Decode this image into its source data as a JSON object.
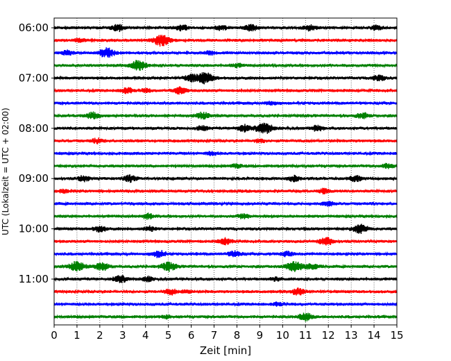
{
  "chart_data": {
    "type": "line",
    "title": "",
    "xlabel": "Zeit  [min]",
    "ylabel": "UTC (Lokalzeit = UTC + 02:00)",
    "xlim": [
      0,
      15
    ],
    "x_ticks": [
      "0",
      "1",
      "2",
      "3",
      "4",
      "5",
      "6",
      "7",
      "8",
      "9",
      "10",
      "11",
      "12",
      "13",
      "14",
      "15"
    ],
    "y_tick_labels": [
      "06:00",
      "07:00",
      "08:00",
      "09:00",
      "10:00",
      "11:00"
    ],
    "y_tick_rows": [
      0,
      4,
      8,
      12,
      16,
      20
    ],
    "row_interval_minutes": 15,
    "grid": "vertical dotted",
    "row_colors": [
      "#000000",
      "#ff0000",
      "#0000ff",
      "#008000"
    ],
    "rows": [
      {
        "start": "06:00",
        "color": "#000000",
        "events": [
          [
            2.8,
            0.6
          ],
          [
            5.6,
            0.5
          ],
          [
            7.3,
            0.4
          ],
          [
            8.6,
            0.6
          ],
          [
            11.2,
            0.5
          ],
          [
            14.1,
            0.4
          ]
        ]
      },
      {
        "start": "06:15",
        "color": "#ff0000",
        "events": [
          [
            4.7,
            1.0
          ],
          [
            1.1,
            0.3
          ]
        ]
      },
      {
        "start": "06:30",
        "color": "#0000ff",
        "events": [
          [
            2.3,
            0.9
          ],
          [
            0.6,
            0.4
          ],
          [
            6.8,
            0.3
          ]
        ]
      },
      {
        "start": "06:45",
        "color": "#008000",
        "events": [
          [
            3.7,
            0.9
          ],
          [
            8.0,
            0.3
          ]
        ]
      },
      {
        "start": "07:00",
        "color": "#000000",
        "events": [
          [
            6.6,
            1.0
          ],
          [
            6.0,
            0.6
          ],
          [
            14.2,
            0.5
          ]
        ]
      },
      {
        "start": "07:15",
        "color": "#ff0000",
        "events": [
          [
            5.5,
            0.6
          ],
          [
            3.2,
            0.5
          ],
          [
            4.0,
            0.3
          ]
        ]
      },
      {
        "start": "07:30",
        "color": "#0000ff",
        "events": [
          [
            9.5,
            0.3
          ]
        ]
      },
      {
        "start": "07:45",
        "color": "#008000",
        "events": [
          [
            1.7,
            0.6
          ],
          [
            6.5,
            0.6
          ],
          [
            13.5,
            0.5
          ]
        ]
      },
      {
        "start": "08:00",
        "color": "#000000",
        "events": [
          [
            9.2,
            1.0
          ],
          [
            8.3,
            0.6
          ],
          [
            11.5,
            0.5
          ],
          [
            6.5,
            0.4
          ]
        ]
      },
      {
        "start": "08:15",
        "color": "#ff0000",
        "events": [
          [
            1.9,
            0.4
          ],
          [
            9.0,
            0.3
          ]
        ]
      },
      {
        "start": "08:30",
        "color": "#0000ff",
        "events": [
          [
            6.9,
            0.3
          ]
        ]
      },
      {
        "start": "08:45",
        "color": "#008000",
        "events": [
          [
            14.6,
            0.4
          ],
          [
            8.0,
            0.3
          ]
        ]
      },
      {
        "start": "09:00",
        "color": "#000000",
        "events": [
          [
            1.3,
            0.5
          ],
          [
            3.3,
            0.6
          ],
          [
            10.5,
            0.5
          ],
          [
            13.2,
            0.5
          ]
        ]
      },
      {
        "start": "09:15",
        "color": "#ff0000",
        "events": [
          [
            11.8,
            0.4
          ],
          [
            0.5,
            0.3
          ]
        ]
      },
      {
        "start": "09:30",
        "color": "#0000ff",
        "events": [
          [
            12.0,
            0.4
          ]
        ]
      },
      {
        "start": "09:45",
        "color": "#008000",
        "events": [
          [
            4.1,
            0.5
          ],
          [
            8.3,
            0.4
          ]
        ]
      },
      {
        "start": "10:00",
        "color": "#000000",
        "events": [
          [
            13.4,
            0.8
          ],
          [
            2.0,
            0.5
          ],
          [
            4.2,
            0.4
          ]
        ]
      },
      {
        "start": "10:15",
        "color": "#ff0000",
        "events": [
          [
            7.5,
            0.6
          ],
          [
            11.9,
            0.7
          ]
        ]
      },
      {
        "start": "10:30",
        "color": "#0000ff",
        "events": [
          [
            4.6,
            0.6
          ],
          [
            7.9,
            0.5
          ],
          [
            10.2,
            0.4
          ]
        ]
      },
      {
        "start": "10:45",
        "color": "#008000",
        "events": [
          [
            1.0,
            0.9
          ],
          [
            2.1,
            0.7
          ],
          [
            5.0,
            0.8
          ],
          [
            10.5,
            1.0
          ],
          [
            11.3,
            0.6
          ]
        ]
      },
      {
        "start": "11:00",
        "color": "#000000",
        "events": [
          [
            2.9,
            0.6
          ],
          [
            4.1,
            0.4
          ],
          [
            9.7,
            0.3
          ]
        ]
      },
      {
        "start": "11:15",
        "color": "#ff0000",
        "events": [
          [
            5.1,
            0.5
          ],
          [
            10.7,
            0.6
          ],
          [
            5.8,
            0.3
          ]
        ]
      },
      {
        "start": "11:30",
        "color": "#0000ff",
        "events": [
          [
            9.8,
            0.3
          ]
        ]
      },
      {
        "start": "11:45",
        "color": "#008000",
        "events": [
          [
            11.0,
            0.7
          ],
          [
            4.9,
            0.3
          ]
        ]
      }
    ]
  }
}
